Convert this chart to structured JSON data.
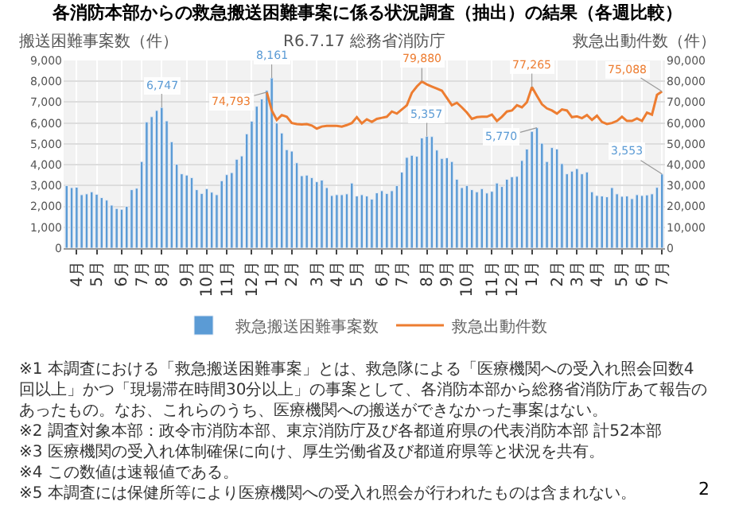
{
  "chart_data": {
    "type": "bar",
    "title": "各消防本部からの救急搬送困難事案に係る状況調査（抽出）の結果（各週比較）",
    "subtitle": "R6.7.17 総務省消防庁",
    "ylabel": "搬送困難事案数（件）",
    "y2label": "救急出動件数（件）",
    "categories": [
      null,
      null,
      "4月",
      null,
      null,
      null,
      "5月",
      null,
      null,
      null,
      null,
      "6月",
      null,
      null,
      null,
      "7月",
      null,
      null,
      null,
      "8月",
      null,
      null,
      null,
      null,
      "9月",
      null,
      null,
      null,
      "10月",
      null,
      null,
      null,
      "11月",
      null,
      null,
      null,
      null,
      "12月",
      null,
      null,
      null,
      "1月",
      null,
      null,
      null,
      "2月",
      null,
      null,
      null,
      null,
      "3月",
      null,
      null,
      null,
      "4月",
      null,
      null,
      null,
      "5月",
      null,
      null,
      null,
      null,
      "6月",
      null,
      null,
      null,
      "7月",
      null,
      null,
      null,
      null,
      "8月",
      null,
      null,
      null,
      "9月",
      null,
      null,
      null,
      "10月",
      null,
      null,
      null,
      null,
      "11月",
      null,
      null,
      null,
      "12月",
      null,
      null,
      null,
      "1月",
      null,
      null,
      null,
      null,
      "2月",
      null,
      null,
      null,
      "3月",
      null,
      null,
      null,
      "4月",
      null,
      null,
      null,
      null,
      "5月",
      null,
      null,
      null,
      "6月",
      null,
      null,
      null,
      "7月"
    ],
    "series": [
      {
        "name": "救急搬送困難事案数",
        "color": "#5b9bd5",
        "values": [
          3000,
          2900,
          2920,
          2560,
          2600,
          2700,
          2580,
          2420,
          2300,
          2060,
          1900,
          1860,
          2000,
          2800,
          2870,
          4150,
          6050,
          6300,
          6600,
          6747,
          6100,
          5100,
          4020,
          3560,
          3500,
          3380,
          2800,
          2620,
          2850,
          2680,
          2560,
          3230,
          3520,
          3620,
          4260,
          4420,
          5480,
          6080,
          6800,
          7150,
          7560,
          8161,
          6000,
          5520,
          4720,
          4650,
          4090,
          3470,
          3500,
          3380,
          3180,
          3260,
          2900,
          2520,
          2560,
          2560,
          2600,
          3120,
          2500,
          2560,
          2500,
          2350,
          2650,
          2750,
          2620,
          2750,
          3000,
          3640,
          4350,
          4450,
          4400,
          5280,
          5357,
          5350,
          4700,
          4300,
          4330,
          4150,
          3300,
          2900,
          3000,
          2800,
          2700,
          2850,
          2640,
          2720,
          3120,
          2950,
          3300,
          3420,
          3440,
          4200,
          4750,
          5600,
          5770,
          5030,
          4150,
          4820,
          4750,
          4050,
          3560,
          3690,
          3810,
          3560,
          3650,
          2700,
          2520,
          2500,
          2460,
          2900,
          2600,
          2480,
          2500,
          2370,
          2560,
          2520,
          2550,
          2600,
          2910,
          3553
        ],
        "value_labels": [
          null,
          null,
          null,
          null,
          null,
          null,
          null,
          null,
          null,
          null,
          null,
          null,
          null,
          null,
          null,
          null,
          null,
          null,
          null,
          "6,747",
          null,
          null,
          null,
          null,
          null,
          null,
          null,
          null,
          null,
          null,
          null,
          null,
          null,
          null,
          null,
          null,
          null,
          null,
          null,
          null,
          null,
          "8,161",
          null,
          null,
          null,
          null,
          null,
          null,
          null,
          null,
          null,
          null,
          null,
          null,
          null,
          null,
          null,
          null,
          null,
          null,
          null,
          null,
          null,
          null,
          null,
          null,
          null,
          null,
          null,
          null,
          null,
          null,
          "5,357",
          null,
          null,
          null,
          null,
          null,
          null,
          null,
          null,
          null,
          null,
          null,
          null,
          null,
          null,
          null,
          null,
          null,
          null,
          null,
          null,
          null,
          "5,770",
          null,
          null,
          null,
          null,
          null,
          null,
          null,
          null,
          null,
          null,
          null,
          null,
          null,
          null,
          null,
          null,
          null,
          null,
          null,
          null,
          null,
          null,
          null,
          null,
          "3,553"
        ]
      },
      {
        "name": "救急出動件数",
        "type": "line",
        "axis": "y2",
        "color": "#ed7d31",
        "values": [
          null,
          null,
          null,
          null,
          null,
          null,
          null,
          null,
          null,
          null,
          null,
          null,
          null,
          null,
          null,
          null,
          null,
          null,
          null,
          null,
          null,
          null,
          null,
          null,
          null,
          null,
          null,
          null,
          null,
          null,
          null,
          null,
          null,
          null,
          null,
          null,
          null,
          null,
          null,
          null,
          74793,
          66000,
          61500,
          63800,
          63000,
          60000,
          59500,
          59300,
          59500,
          58800,
          57300,
          58300,
          58600,
          58600,
          58600,
          58300,
          59000,
          60000,
          62800,
          59800,
          61800,
          60500,
          62000,
          62500,
          63000,
          65500,
          64500,
          66500,
          68500,
          74500,
          77500,
          79880,
          78500,
          77500,
          76500,
          75500,
          72000,
          68500,
          69700,
          67500,
          65000,
          62000,
          62800,
          63000,
          63000,
          64000,
          61000,
          63000,
          65500,
          66000,
          68500,
          67500,
          70000,
          77265,
          73000,
          69000,
          67000,
          66000,
          64500,
          66500,
          66000,
          62800,
          63200,
          62300,
          63800,
          61500,
          63500,
          60500,
          59500,
          60000,
          61000,
          63000,
          61000,
          61000,
          62200,
          61000,
          65000,
          64000,
          73500,
          75088
        ],
        "value_labels": [
          null,
          null,
          null,
          null,
          null,
          null,
          null,
          null,
          null,
          null,
          null,
          null,
          null,
          null,
          null,
          null,
          null,
          null,
          null,
          null,
          null,
          null,
          null,
          null,
          null,
          null,
          null,
          null,
          null,
          null,
          null,
          null,
          null,
          null,
          null,
          null,
          null,
          null,
          null,
          null,
          "74,793",
          null,
          null,
          null,
          null,
          null,
          null,
          null,
          null,
          null,
          null,
          null,
          null,
          null,
          null,
          null,
          null,
          null,
          null,
          null,
          null,
          null,
          null,
          null,
          null,
          null,
          null,
          null,
          null,
          null,
          null,
          "79,880",
          null,
          null,
          null,
          null,
          null,
          null,
          null,
          null,
          null,
          null,
          null,
          null,
          null,
          null,
          null,
          null,
          null,
          null,
          null,
          null,
          null,
          "77,265",
          null,
          null,
          null,
          null,
          null,
          null,
          null,
          null,
          null,
          null,
          null,
          null,
          null,
          null,
          null,
          null,
          null,
          null,
          null,
          null,
          null,
          null,
          null,
          null,
          null,
          "75,088"
        ]
      }
    ],
    "ylim": [
      0,
      9000
    ],
    "yticks": [
      0,
      {
        "value": 1000,
        "label": "1,000"
      },
      {
        "value": 2000,
        "label": "2,000"
      },
      {
        "value": 3000,
        "label": "3,000"
      },
      {
        "value": 4000,
        "label": "4,000"
      },
      {
        "value": 5000,
        "label": "5,000"
      },
      {
        "value": 6000,
        "label": "6,000"
      },
      {
        "value": 7000,
        "label": "7,000"
      },
      {
        "value": 8000,
        "label": "8,000"
      },
      {
        "value": 9000,
        "label": "9,000"
      }
    ],
    "y2lim": [
      0,
      90000
    ],
    "y2ticks": [
      0,
      {
        "value": 10000,
        "label": "10,000"
      },
      {
        "value": 20000,
        "label": "20,000"
      },
      {
        "value": 30000,
        "label": "30,000"
      },
      {
        "value": 40000,
        "label": "40,000"
      },
      {
        "value": 50000,
        "label": "50,000"
      },
      {
        "value": 60000,
        "label": "60,000"
      },
      {
        "value": 70000,
        "label": "70,000"
      },
      {
        "value": 80000,
        "label": "80,000"
      },
      {
        "value": 90000,
        "label": "90,000"
      }
    ],
    "grid": true,
    "legend": "bottom",
    "annotations": [
      "※1 本調査における「救急搬送困難事案」とは、救急隊による「医療機関への受入れ照会回数4回以上」かつ「現場滞在時間30分以上」の事案として、各消防本部から総務省消防庁あて報告のあったもの。なお、これらのうち、医療機関への搬送ができなかった事案はない。",
      "※2 調査対象本部：政令市消防本部、東京消防庁及び各都道府県の代表消防本部 計52本部",
      "※3 医療機関の受入れ体制確保に向け、厚生労働省及び都道府県等と状況を共有。",
      "※4 この数値は速報値である。",
      "※5 本調査には保健所等により医療機関への受入れ照会が行われたものは含まれない。",
      "2"
    ]
  }
}
